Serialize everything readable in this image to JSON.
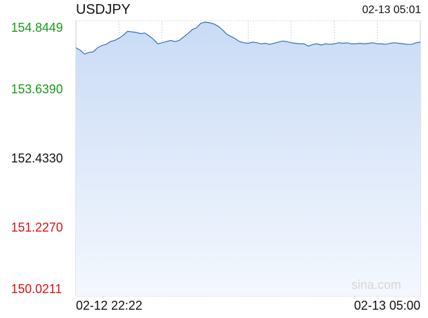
{
  "symbol": "USDJPY",
  "timestamp": "02-13 05:01",
  "watermark": "sina.com",
  "colors": {
    "up": "#1a9a1a",
    "down": "#dd1111",
    "neutral": "#111111",
    "line": "#3a6db5",
    "fill_top": "#c9dbf6",
    "fill_bottom": "#f4f8fe",
    "grid": "#c8c8c8",
    "base_line": "#8a8ab0"
  },
  "chart_data": {
    "type": "area",
    "title": "USDJPY",
    "xlabel": "",
    "ylabel": "",
    "ylim": [
      150.0211,
      154.8449
    ],
    "base_value": 152.433,
    "grid": true,
    "ytick_labels": [
      {
        "label": "154.8449",
        "value": 154.8449,
        "tone": "up"
      },
      {
        "label": "153.6390",
        "value": 153.639,
        "tone": "up"
      },
      {
        "label": "152.4330",
        "value": 152.433,
        "tone": "neutral"
      },
      {
        "label": "151.2270",
        "value": 151.227,
        "tone": "down"
      },
      {
        "label": "150.0211",
        "value": 150.0211,
        "tone": "down"
      }
    ],
    "xtick_labels": [
      "02-12 22:22",
      "02-13 05:00"
    ],
    "x_range": [
      "02-12 22:22",
      "02-13 05:00"
    ],
    "series": [
      {
        "values": [
          154.37,
          154.33,
          154.26,
          154.29,
          154.3,
          154.37,
          154.41,
          154.43,
          154.48,
          154.5,
          154.54,
          154.59,
          154.66,
          154.65,
          154.64,
          154.62,
          154.63,
          154.58,
          154.52,
          154.44,
          154.46,
          154.48,
          154.5,
          154.48,
          154.5,
          154.56,
          154.62,
          154.69,
          154.72,
          154.8,
          154.82,
          154.81,
          154.79,
          154.75,
          154.69,
          154.61,
          154.57,
          154.53,
          154.48,
          154.46,
          154.45,
          154.47,
          154.46,
          154.44,
          154.45,
          154.43,
          154.45,
          154.47,
          154.49,
          154.48,
          154.46,
          154.45,
          154.44,
          154.44,
          154.4,
          154.43,
          154.44,
          154.42,
          154.44,
          154.43,
          154.44,
          154.46,
          154.45,
          154.46,
          154.44,
          154.44,
          154.45,
          154.44,
          154.45,
          154.46,
          154.44,
          154.44,
          154.43,
          154.45,
          154.46,
          154.45,
          154.44,
          154.43,
          154.43,
          154.46,
          154.47
        ]
      }
    ]
  }
}
